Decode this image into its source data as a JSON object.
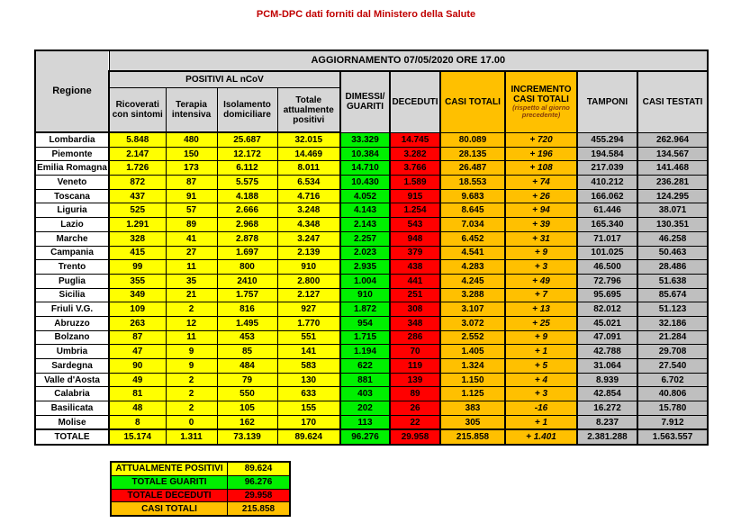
{
  "title": "PCM-DPC dati forniti dal Ministero della Salute",
  "table": {
    "banner": "AGGIORNAMENTO 07/05/2020 ORE 17.00",
    "region_header": "Regione",
    "group_header": "POSITIVI AL nCoV",
    "subcolumns": [
      "Ricoverati con sintomi",
      "Terapia intensiva",
      "Isolamento domiciliare",
      "Totale attualmente positivi"
    ],
    "columns": {
      "dimessi": "DIMESSI/ GUARITI",
      "deceduti": "DECEDUTI",
      "casi_totali": "CASI TOTALI",
      "incremento": "INCREMENTO CASI TOTALI",
      "incremento_note": "(rispetto al giorno precedente)",
      "tamponi": "TAMPONI",
      "casi_testati": "CASI TESTATI"
    },
    "rows": [
      {
        "region": "Lombardia",
        "values": [
          "5.848",
          "480",
          "25.687",
          "32.015",
          "33.329",
          "14.745",
          "80.089",
          "+ 720",
          "455.294",
          "262.964"
        ]
      },
      {
        "region": "Piemonte",
        "values": [
          "2.147",
          "150",
          "12.172",
          "14.469",
          "10.384",
          "3.282",
          "28.135",
          "+ 196",
          "194.584",
          "134.567"
        ]
      },
      {
        "region": "Emilia Romagna",
        "values": [
          "1.726",
          "173",
          "6.112",
          "8.011",
          "14.710",
          "3.766",
          "26.487",
          "+ 108",
          "217.039",
          "141.468"
        ]
      },
      {
        "region": "Veneto",
        "values": [
          "872",
          "87",
          "5.575",
          "6.534",
          "10.430",
          "1.589",
          "18.553",
          "+ 74",
          "410.212",
          "236.281"
        ]
      },
      {
        "region": "Toscana",
        "values": [
          "437",
          "91",
          "4.188",
          "4.716",
          "4.052",
          "915",
          "9.683",
          "+ 26",
          "166.062",
          "124.295"
        ]
      },
      {
        "region": "Liguria",
        "values": [
          "525",
          "57",
          "2.666",
          "3.248",
          "4.143",
          "1.254",
          "8.645",
          "+ 94",
          "61.446",
          "38.071"
        ]
      },
      {
        "region": "Lazio",
        "values": [
          "1.291",
          "89",
          "2.968",
          "4.348",
          "2.143",
          "543",
          "7.034",
          "+ 39",
          "165.340",
          "130.351"
        ]
      },
      {
        "region": "Marche",
        "values": [
          "328",
          "41",
          "2.878",
          "3.247",
          "2.257",
          "948",
          "6.452",
          "+ 31",
          "71.017",
          "46.258"
        ]
      },
      {
        "region": "Campania",
        "values": [
          "415",
          "27",
          "1.697",
          "2.139",
          "2.023",
          "379",
          "4.541",
          "+ 9",
          "101.025",
          "50.463"
        ]
      },
      {
        "region": "Trento",
        "values": [
          "99",
          "11",
          "800",
          "910",
          "2.935",
          "438",
          "4.283",
          "+ 3",
          "46.500",
          "28.486"
        ]
      },
      {
        "region": "Puglia",
        "values": [
          "355",
          "35",
          "2410",
          "2.800",
          "1.004",
          "441",
          "4.245",
          "+ 49",
          "72.796",
          "51.638"
        ]
      },
      {
        "region": "Sicilia",
        "values": [
          "349",
          "21",
          "1.757",
          "2.127",
          "910",
          "251",
          "3.288",
          "+ 7",
          "95.695",
          "85.674"
        ]
      },
      {
        "region": "Friuli V.G.",
        "values": [
          "109",
          "2",
          "816",
          "927",
          "1.872",
          "308",
          "3.107",
          "+ 13",
          "82.012",
          "51.123"
        ]
      },
      {
        "region": "Abruzzo",
        "values": [
          "263",
          "12",
          "1.495",
          "1.770",
          "954",
          "348",
          "3.072",
          "+ 25",
          "45.021",
          "32.186"
        ]
      },
      {
        "region": "Bolzano",
        "values": [
          "87",
          "11",
          "453",
          "551",
          "1.715",
          "286",
          "2.552",
          "+ 9",
          "47.091",
          "21.284"
        ]
      },
      {
        "region": "Umbria",
        "values": [
          "47",
          "9",
          "85",
          "141",
          "1.194",
          "70",
          "1.405",
          "+ 1",
          "42.788",
          "29.708"
        ]
      },
      {
        "region": "Sardegna",
        "values": [
          "90",
          "9",
          "484",
          "583",
          "622",
          "119",
          "1.324",
          "+ 5",
          "31.064",
          "27.540"
        ]
      },
      {
        "region": "Valle d'Aosta",
        "values": [
          "49",
          "2",
          "79",
          "130",
          "881",
          "139",
          "1.150",
          "+ 4",
          "8.939",
          "6.702"
        ]
      },
      {
        "region": "Calabria",
        "values": [
          "81",
          "2",
          "550",
          "633",
          "403",
          "89",
          "1.125",
          "+ 3",
          "42.854",
          "40.806"
        ]
      },
      {
        "region": "Basilicata",
        "values": [
          "48",
          "2",
          "105",
          "155",
          "202",
          "26",
          "383",
          "-16",
          "16.272",
          "15.780"
        ]
      },
      {
        "region": "Molise",
        "values": [
          "8",
          "0",
          "162",
          "170",
          "113",
          "22",
          "305",
          "+ 1",
          "8.237",
          "7.912"
        ]
      }
    ],
    "total": {
      "region": "TOTALE",
      "values": [
        "15.174",
        "1.311",
        "73.139",
        "89.624",
        "96.276",
        "29.958",
        "215.858",
        "+ 1.401",
        "2.381.288",
        "1.563.557"
      ]
    }
  },
  "summary": {
    "rows": [
      {
        "label": "ATTUALMENTE POSITIVI",
        "value": "89.624",
        "color": "#FFFF00"
      },
      {
        "label": "TOTALE GUARITI",
        "value": "96.276",
        "color": "#00F000"
      },
      {
        "label": "TOTALE DECEDUTI",
        "value": "29.958",
        "color": "#FF0000"
      },
      {
        "label": "CASI TOTALI",
        "value": "215.858",
        "color": "#FFC000"
      }
    ]
  },
  "colors": {
    "title_red": "#C00000",
    "yellow": "#FFFF00",
    "green": "#00F000",
    "red": "#FF0000",
    "orange": "#FFC000",
    "data_gray": "#BFBFBF",
    "header_gray": "#D6D6D6"
  }
}
